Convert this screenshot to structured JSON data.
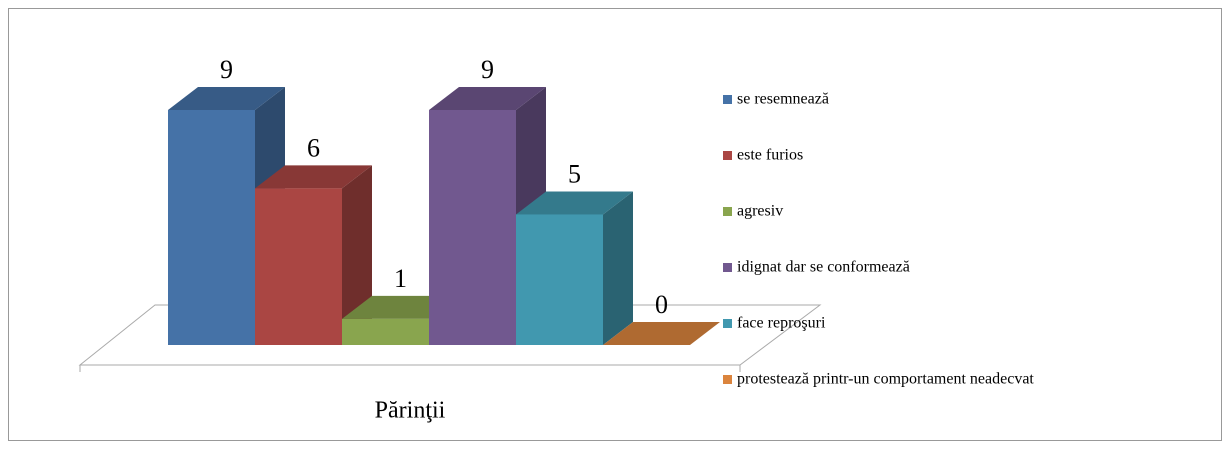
{
  "chart_data": {
    "type": "bar",
    "categories": [
      "Părinţii"
    ],
    "series": [
      {
        "name": "se resemnează",
        "color": "#4572a7",
        "values": [
          9
        ]
      },
      {
        "name": "este furios",
        "color": "#aa4643",
        "values": [
          6
        ]
      },
      {
        "name": "agresiv",
        "color": "#89a54e",
        "values": [
          1
        ]
      },
      {
        "name": "idignat dar se conformează",
        "color": "#71588f",
        "values": [
          9
        ]
      },
      {
        "name": "face reproşuri",
        "color": "#4198af",
        "values": [
          5
        ]
      },
      {
        "name": "protestează printr-un comportament neadecvat",
        "color": "#db843d",
        "values": [
          0
        ]
      }
    ]
  }
}
